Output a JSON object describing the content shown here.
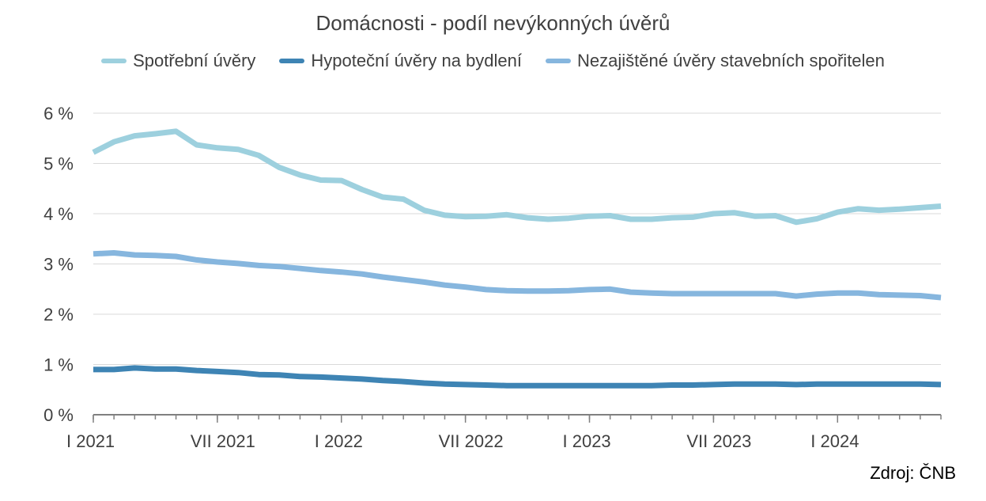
{
  "colors": {
    "spotrebni": "#9DD0DE",
    "hypotecni": "#3E84B4",
    "nezajistene": "#86B6DE",
    "grid": "#d9d9d9",
    "axis": "#808080"
  },
  "source_label": "Zdroj: ČNB",
  "chart_data": {
    "type": "line",
    "title": "Domácnosti - podíl nevýkonných úvěrů",
    "xlabel": "",
    "ylabel": "",
    "ylim": [
      0,
      6
    ],
    "yticks": [
      0,
      1,
      2,
      3,
      4,
      5,
      6
    ],
    "ytick_labels": [
      "0 %",
      "1 %",
      "2 %",
      "3 %",
      "4 %",
      "5 %",
      "6 %"
    ],
    "x_tick_labels": [
      {
        "index": 0,
        "label": "I 2021"
      },
      {
        "index": 6,
        "label": "VII 2021"
      },
      {
        "index": 12,
        "label": "I 2022"
      },
      {
        "index": 18,
        "label": "VII 2022"
      },
      {
        "index": 24,
        "label": "I 2023"
      },
      {
        "index": 30,
        "label": "VII 2023"
      },
      {
        "index": 36,
        "label": "I 2024"
      }
    ],
    "x": [
      "I 2021",
      "II 2021",
      "III 2021",
      "IV 2021",
      "V 2021",
      "VI 2021",
      "VII 2021",
      "VIII 2021",
      "IX 2021",
      "X 2021",
      "XI 2021",
      "XII 2021",
      "I 2022",
      "II 2022",
      "III 2022",
      "IV 2022",
      "V 2022",
      "VI 2022",
      "VII 2022",
      "VIII 2022",
      "IX 2022",
      "X 2022",
      "XI 2022",
      "XII 2022",
      "I 2023",
      "II 2023",
      "III 2023",
      "IV 2023",
      "V 2023",
      "VI 2023",
      "VII 2023",
      "VIII 2023",
      "IX 2023",
      "X 2023",
      "XI 2023",
      "XII 2023",
      "I 2024",
      "II 2024",
      "III 2024",
      "IV 2024",
      "V 2024",
      "VI 2024"
    ],
    "grid": true,
    "legend_position": "top",
    "series": [
      {
        "name": "Spotřební úvěry",
        "color_key": "spotrebni",
        "values": [
          5.22,
          5.43,
          5.55,
          5.59,
          5.64,
          5.37,
          5.31,
          5.28,
          5.16,
          4.92,
          4.77,
          4.67,
          4.66,
          4.48,
          4.33,
          4.29,
          4.07,
          3.97,
          3.94,
          3.95,
          3.98,
          3.92,
          3.89,
          3.91,
          3.95,
          3.96,
          3.89,
          3.89,
          3.92,
          3.93,
          4.0,
          4.02,
          3.95,
          3.96,
          3.83,
          3.9,
          4.03,
          4.1,
          4.07,
          4.09,
          4.12,
          4.15
        ]
      },
      {
        "name": "Hypoteční úvěry na bydlení",
        "color_key": "hypotecni",
        "values": [
          0.9,
          0.9,
          0.93,
          0.91,
          0.91,
          0.88,
          0.86,
          0.84,
          0.8,
          0.79,
          0.76,
          0.75,
          0.73,
          0.71,
          0.68,
          0.66,
          0.63,
          0.61,
          0.6,
          0.59,
          0.58,
          0.58,
          0.58,
          0.58,
          0.58,
          0.58,
          0.58,
          0.58,
          0.59,
          0.59,
          0.6,
          0.61,
          0.61,
          0.61,
          0.6,
          0.61,
          0.61,
          0.61,
          0.61,
          0.61,
          0.61,
          0.6
        ]
      },
      {
        "name": "Nezajištěné úvěry stavebních spořitelen",
        "color_key": "nezajistene",
        "values": [
          3.2,
          3.22,
          3.18,
          3.17,
          3.15,
          3.08,
          3.04,
          3.01,
          2.97,
          2.95,
          2.91,
          2.87,
          2.84,
          2.8,
          2.74,
          2.69,
          2.64,
          2.58,
          2.54,
          2.49,
          2.47,
          2.46,
          2.46,
          2.47,
          2.49,
          2.5,
          2.44,
          2.42,
          2.41,
          2.41,
          2.41,
          2.41,
          2.41,
          2.41,
          2.36,
          2.4,
          2.42,
          2.42,
          2.39,
          2.38,
          2.37,
          2.33
        ]
      }
    ]
  }
}
